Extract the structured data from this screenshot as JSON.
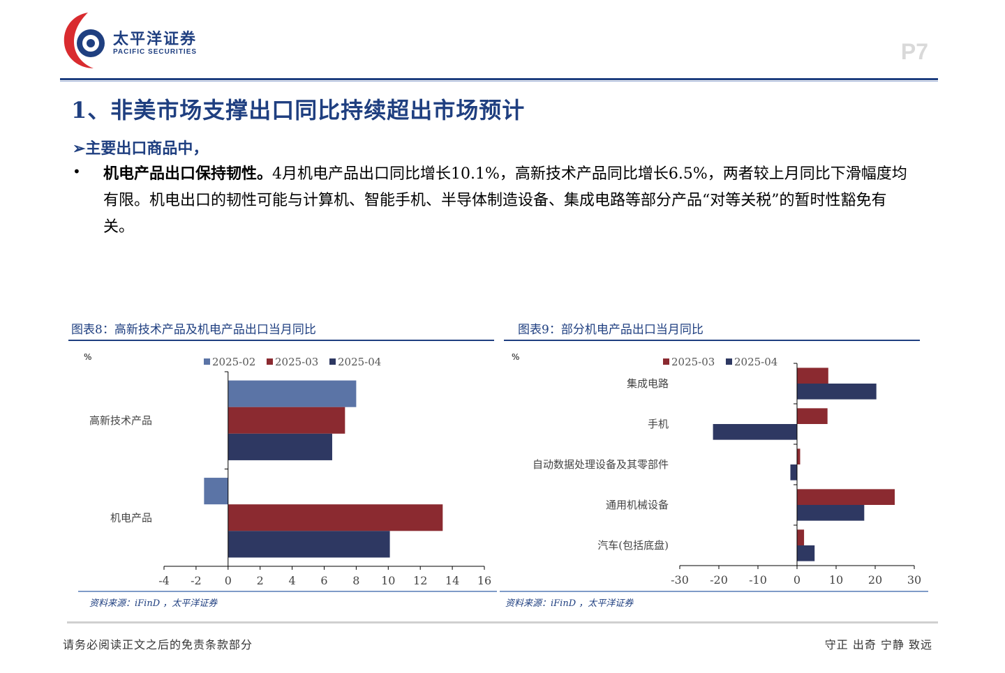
{
  "header": {
    "logo_cn": "太平洋证券",
    "logo_en": "PACIFIC SECURITIES",
    "page_no": "P7"
  },
  "title": "1、非美市场支撑出口同比持续超出市场预计",
  "subheading": "➢主要出口商品中，",
  "paragraph": {
    "lead": "机电产品出口保持韧性。",
    "body": "4月机电产品出口同比增长10.1%，高新技术产品同比增长6.5%，两者较上月同比下滑幅度均有限。机电出口的韧性可能与计算机、智能手机、半导体制造设备、集成电路等部分产品“对等关税”的暂时性豁免有关。"
  },
  "figures": {
    "fig8_title": "图表8：高新技术产品及机电产品出口当月同比",
    "fig9_title": "图表9：部分机电产品出口当月同比",
    "source": "资料来源：iFinD ，太平洋证券"
  },
  "footer": {
    "left": "请务必阅读正文之后的免责条款部分",
    "right": "守正 出奇 宁静 致远"
  },
  "colors": {
    "2025-02": "#5b74a6",
    "2025-03": "#8b2a30",
    "2025-04": "#2e3862",
    "brand": "#1f3f80"
  },
  "chart_data": [
    {
      "type": "bar",
      "orientation": "horizontal",
      "unit_label": "%",
      "categories": [
        "高新技术产品",
        "机电产品"
      ],
      "series": [
        {
          "name": "2025-02",
          "values": [
            8.0,
            -1.5
          ]
        },
        {
          "name": "2025-03",
          "values": [
            7.3,
            13.4
          ]
        },
        {
          "name": "2025-04",
          "values": [
            6.5,
            10.1
          ]
        }
      ],
      "xlim": [
        -4,
        16
      ],
      "xticks": [
        "-4",
        "-2",
        "0",
        "2",
        "4",
        "6",
        "8",
        "10",
        "12",
        "14",
        "16"
      ],
      "legend": "top"
    },
    {
      "type": "bar",
      "orientation": "horizontal",
      "unit_label": "%",
      "categories": [
        "集成电路",
        "手机",
        "自动数据处理设备及其零部件",
        "通用机械设备",
        "汽车(包括底盘)"
      ],
      "series": [
        {
          "name": "2025-03",
          "values": [
            8.0,
            7.8,
            0.8,
            25.0,
            1.8
          ]
        },
        {
          "name": "2025-04",
          "values": [
            20.3,
            -21.5,
            -1.7,
            17.2,
            4.5
          ]
        }
      ],
      "xlim": [
        -30,
        30
      ],
      "xticks": [
        "-30",
        "-20",
        "-10",
        "0",
        "10",
        "20",
        "30"
      ],
      "legend": "top"
    }
  ]
}
